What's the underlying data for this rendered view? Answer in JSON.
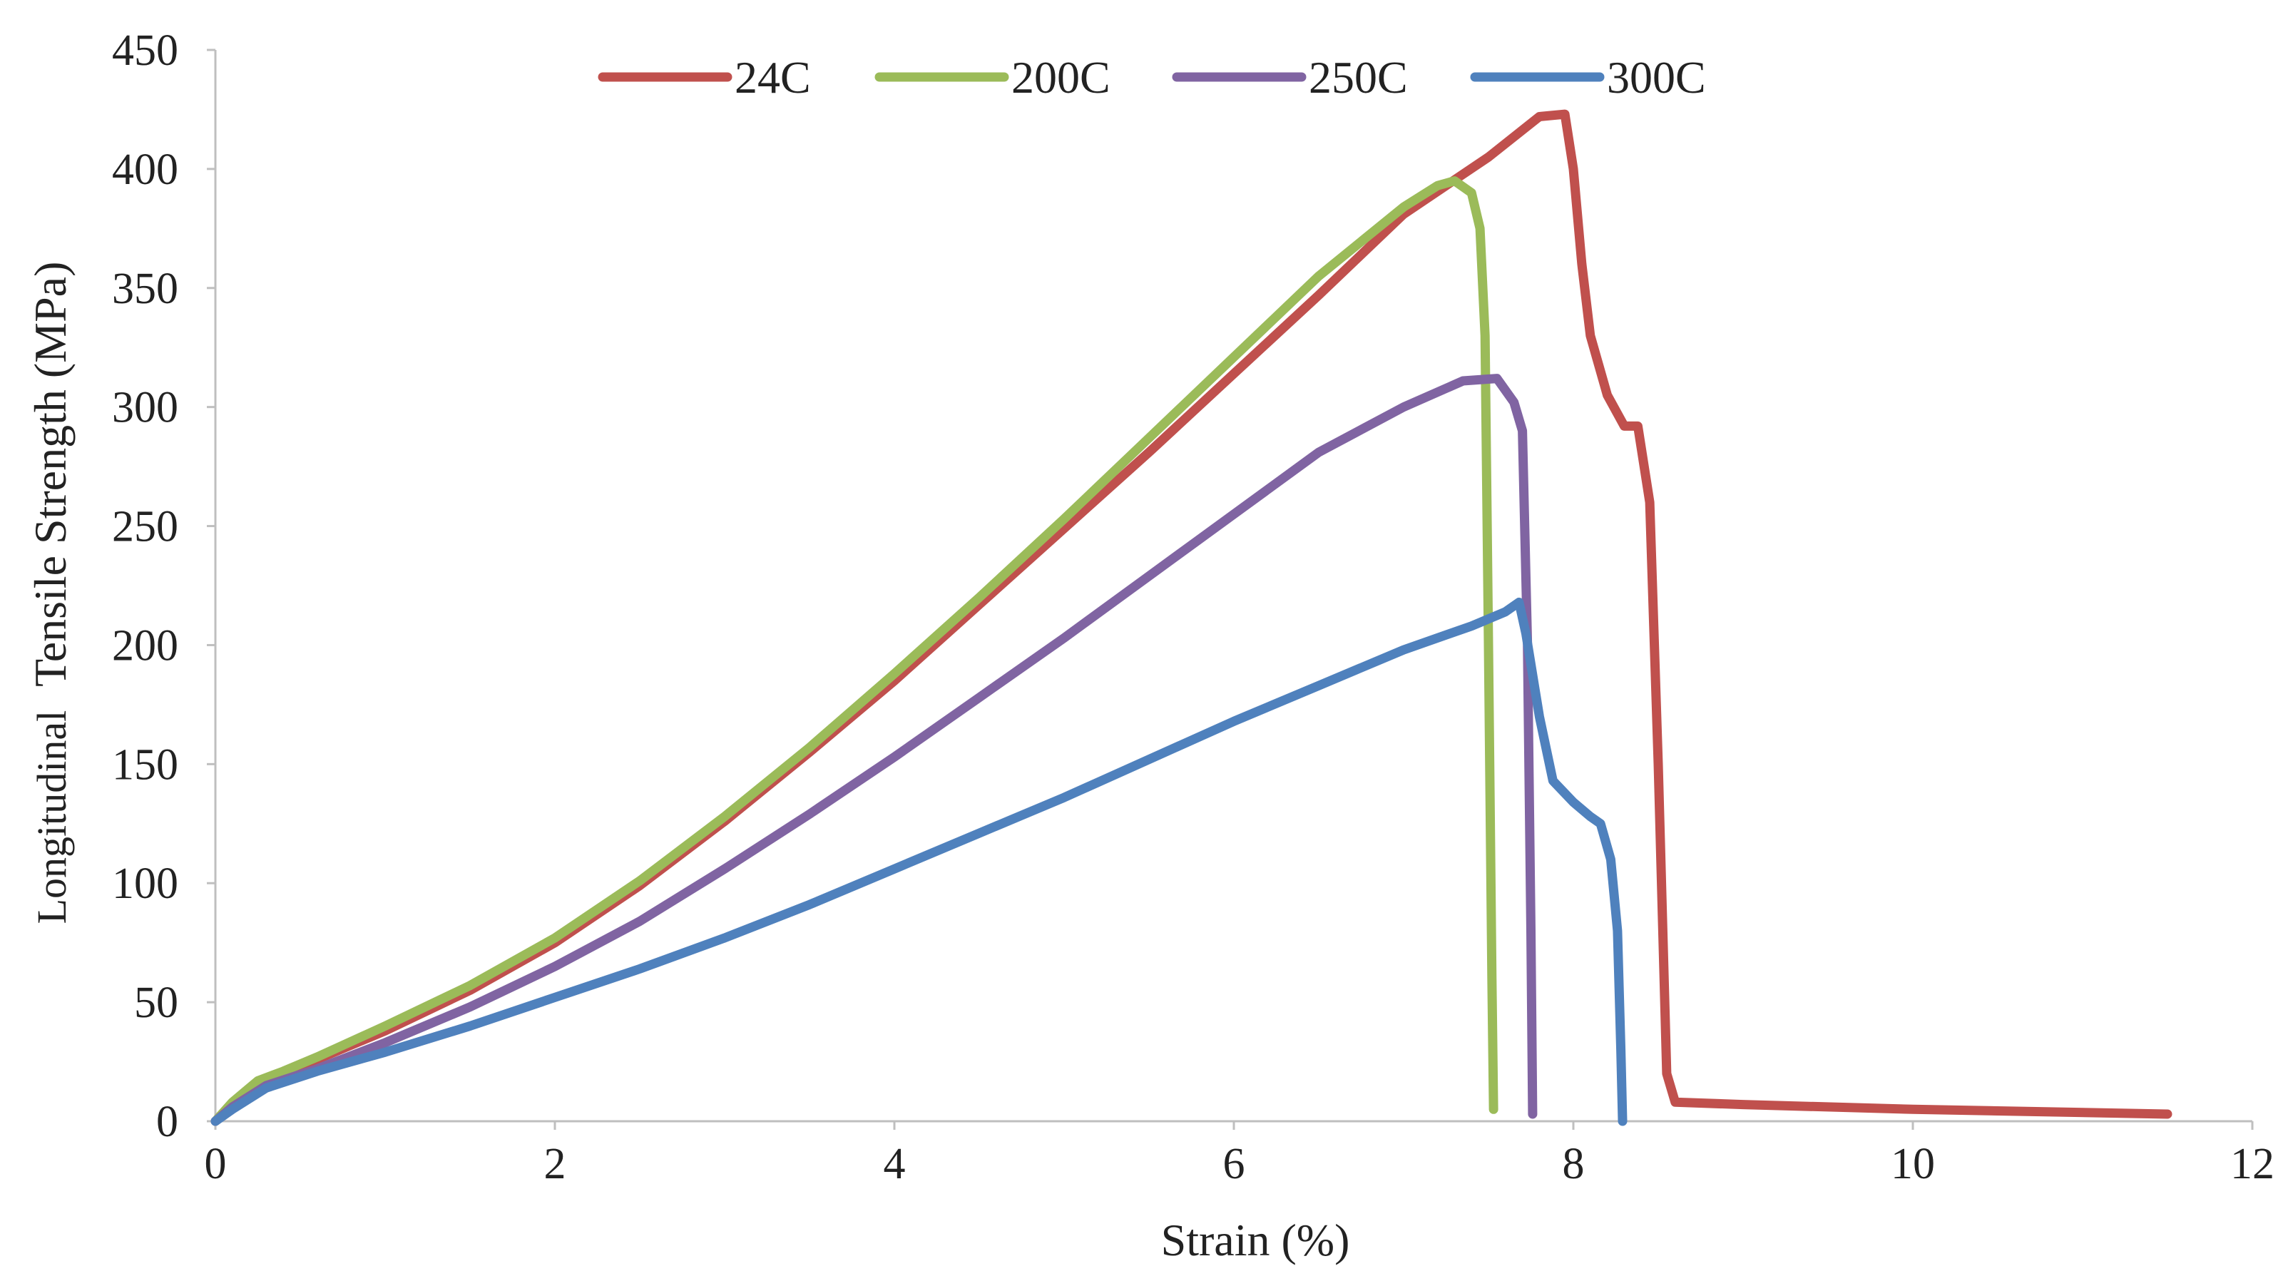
{
  "chart_data": {
    "type": "line",
    "title": "",
    "xlabel": "Strain (%)",
    "ylabel_parts": [
      "Longitudinal",
      "Tensile Strength (MPa)"
    ],
    "xlim": [
      0,
      12
    ],
    "ylim": [
      0,
      450
    ],
    "x_ticks": [
      0,
      2,
      4,
      6,
      8,
      10,
      12
    ],
    "y_ticks": [
      0,
      50,
      100,
      150,
      200,
      250,
      300,
      350,
      400,
      450
    ],
    "grid": false,
    "legend_position": "top",
    "series": [
      {
        "name": "24C",
        "color": "#C0504D",
        "points": [
          [
            0,
            0
          ],
          [
            0.1,
            6
          ],
          [
            0.2,
            13
          ],
          [
            0.4,
            20
          ],
          [
            0.6,
            26
          ],
          [
            1,
            38
          ],
          [
            1.5,
            55
          ],
          [
            2,
            75
          ],
          [
            2.5,
            99
          ],
          [
            3,
            126
          ],
          [
            3.5,
            155
          ],
          [
            4,
            185
          ],
          [
            4.5,
            217
          ],
          [
            5,
            249
          ],
          [
            5.5,
            281
          ],
          [
            6,
            314
          ],
          [
            6.5,
            347
          ],
          [
            7,
            381
          ],
          [
            7.5,
            405
          ],
          [
            7.8,
            422
          ],
          [
            7.95,
            423
          ],
          [
            8.0,
            400
          ],
          [
            8.05,
            360
          ],
          [
            8.1,
            330
          ],
          [
            8.2,
            305
          ],
          [
            8.3,
            292
          ],
          [
            8.38,
            292
          ],
          [
            8.45,
            260
          ],
          [
            8.5,
            150
          ],
          [
            8.55,
            20
          ],
          [
            8.6,
            8
          ],
          [
            9,
            7
          ],
          [
            10,
            5
          ],
          [
            11.5,
            3
          ]
        ]
      },
      {
        "name": "200C",
        "color": "#9BBB59",
        "points": [
          [
            0,
            0
          ],
          [
            0.1,
            8
          ],
          [
            0.25,
            17
          ],
          [
            0.4,
            21
          ],
          [
            0.6,
            27
          ],
          [
            1,
            40
          ],
          [
            1.5,
            57
          ],
          [
            2,
            77
          ],
          [
            2.5,
            101
          ],
          [
            3,
            128
          ],
          [
            3.5,
            157
          ],
          [
            4,
            188
          ],
          [
            4.5,
            220
          ],
          [
            5,
            253
          ],
          [
            5.5,
            287
          ],
          [
            6,
            321
          ],
          [
            6.5,
            355
          ],
          [
            7,
            384
          ],
          [
            7.2,
            393
          ],
          [
            7.3,
            395
          ],
          [
            7.4,
            390
          ],
          [
            7.45,
            375
          ],
          [
            7.48,
            330
          ],
          [
            7.5,
            200
          ],
          [
            7.52,
            60
          ],
          [
            7.53,
            5
          ]
        ]
      },
      {
        "name": "250C",
        "color": "#8064A2",
        "points": [
          [
            0,
            0
          ],
          [
            0.1,
            6
          ],
          [
            0.3,
            15
          ],
          [
            0.6,
            22
          ],
          [
            1,
            33
          ],
          [
            1.5,
            48
          ],
          [
            2,
            65
          ],
          [
            2.5,
            84
          ],
          [
            3,
            106
          ],
          [
            3.5,
            129
          ],
          [
            4,
            153
          ],
          [
            4.5,
            178
          ],
          [
            5,
            203
          ],
          [
            5.5,
            229
          ],
          [
            6,
            255
          ],
          [
            6.5,
            281
          ],
          [
            7,
            300
          ],
          [
            7.35,
            311
          ],
          [
            7.55,
            312
          ],
          [
            7.65,
            302
          ],
          [
            7.7,
            290
          ],
          [
            7.73,
            200
          ],
          [
            7.75,
            80
          ],
          [
            7.76,
            3
          ]
        ]
      },
      {
        "name": "300C",
        "color": "#4F81BD",
        "points": [
          [
            0,
            0
          ],
          [
            0.1,
            5
          ],
          [
            0.3,
            14
          ],
          [
            0.6,
            21
          ],
          [
            1,
            29
          ],
          [
            1.5,
            40
          ],
          [
            2,
            52
          ],
          [
            2.5,
            64
          ],
          [
            3,
            77
          ],
          [
            3.5,
            91
          ],
          [
            4,
            106
          ],
          [
            4.5,
            121
          ],
          [
            5,
            136
          ],
          [
            5.5,
            152
          ],
          [
            6,
            168
          ],
          [
            6.5,
            183
          ],
          [
            7,
            198
          ],
          [
            7.4,
            208
          ],
          [
            7.6,
            214
          ],
          [
            7.68,
            218
          ],
          [
            7.72,
            205
          ],
          [
            7.8,
            170
          ],
          [
            7.88,
            143
          ],
          [
            8.0,
            134
          ],
          [
            8.1,
            128
          ],
          [
            8.16,
            125
          ],
          [
            8.22,
            110
          ],
          [
            8.26,
            80
          ],
          [
            8.28,
            30
          ],
          [
            8.29,
            0
          ]
        ]
      }
    ]
  }
}
